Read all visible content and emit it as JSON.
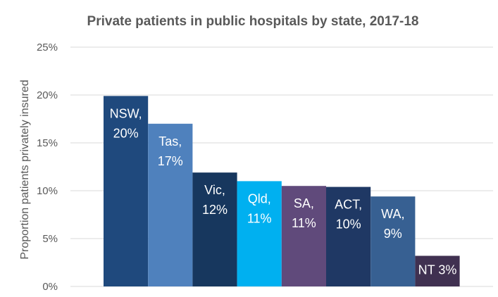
{
  "chart_data": {
    "type": "bar",
    "title": "Private patients in public hospitals by state, 2017-18",
    "xlabel": "",
    "ylabel": "Proportion patients privately insured",
    "ylim": [
      0,
      25
    ],
    "yticks": [
      0,
      5,
      10,
      15,
      20,
      25
    ],
    "ytick_labels": [
      "0%",
      "5%",
      "10%",
      "15%",
      "20%",
      "25%"
    ],
    "grid": true,
    "legend": "none",
    "categories": [
      "NSW",
      "Tas",
      "Vic",
      "Qld",
      "SA",
      "ACT",
      "WA",
      "NT"
    ],
    "values": [
      19.9,
      17.0,
      11.9,
      11.0,
      10.5,
      10.4,
      9.4,
      3.2
    ],
    "data_labels": [
      [
        "NSW,",
        "20%"
      ],
      [
        "Tas,",
        "17%"
      ],
      [
        "Vic,",
        "12%"
      ],
      [
        "Qld,",
        "11%"
      ],
      [
        "SA,",
        "11%"
      ],
      [
        "ACT,",
        "10%"
      ],
      [
        "WA,",
        "9%"
      ],
      [
        "NT 3%"
      ]
    ],
    "colors": [
      "#1f497d",
      "#4f81bd",
      "#17375e",
      "#00b0f0",
      "#604a7b",
      "#1f3864",
      "#376092",
      "#403151"
    ]
  }
}
